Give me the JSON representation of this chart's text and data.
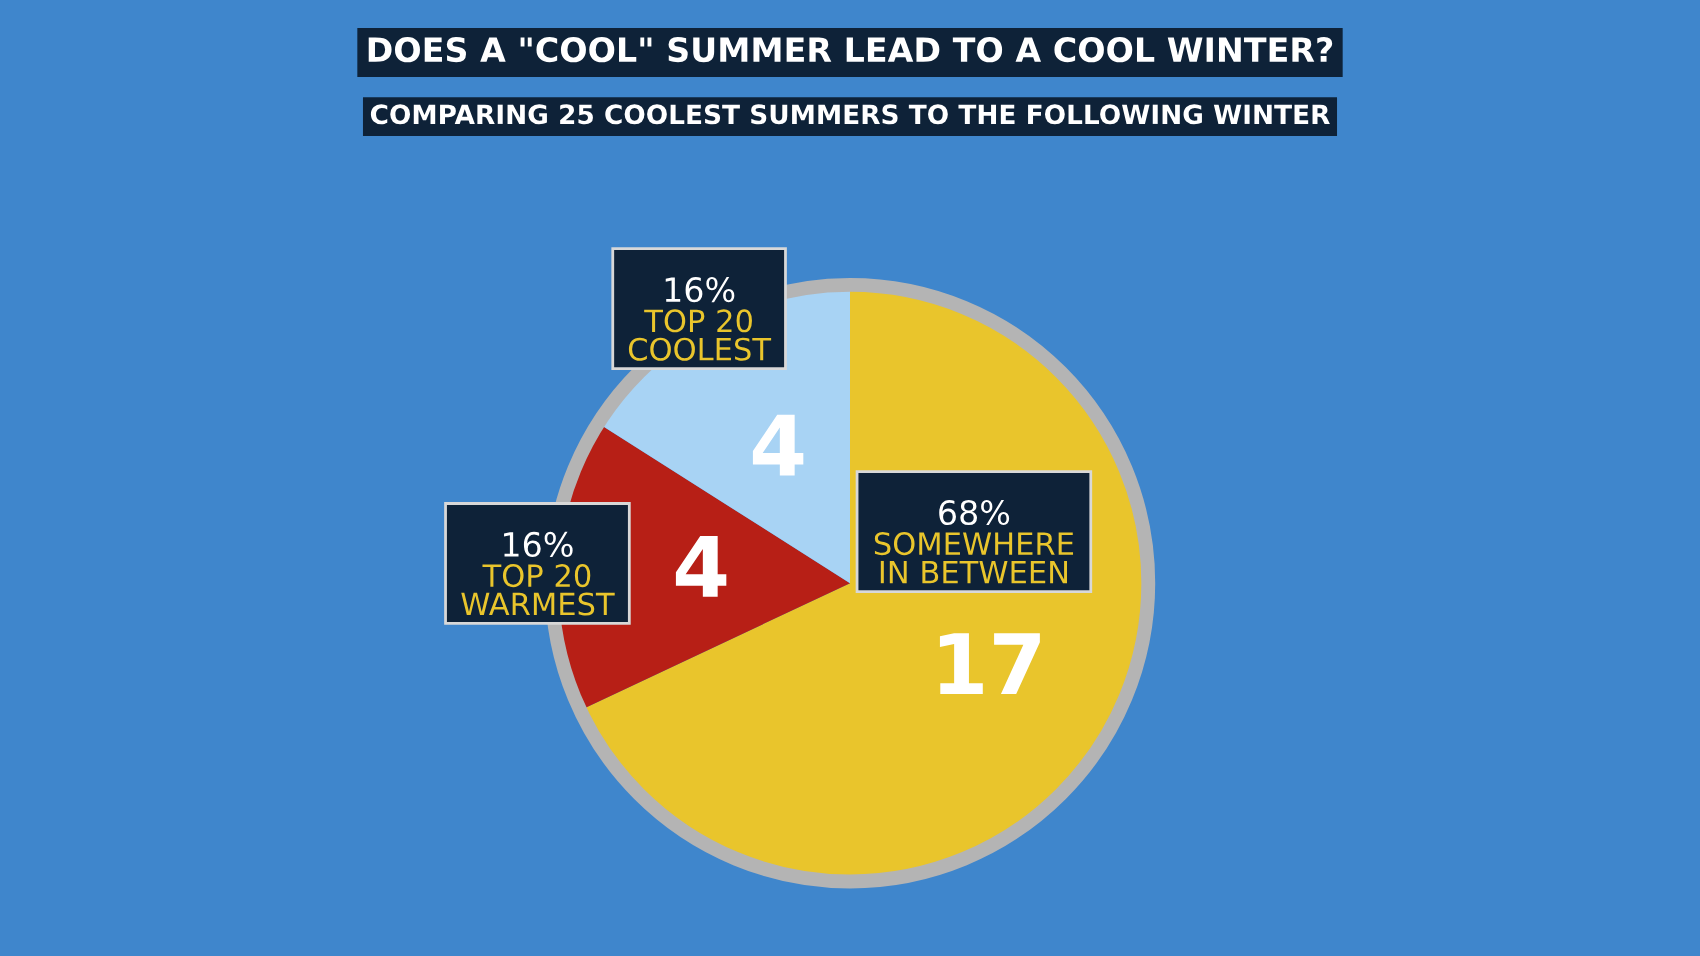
{
  "chart_data": {
    "type": "pie",
    "title": "DOES A \"COOL\" SUMMER LEAD TO A COOL WINTER?",
    "subtitle": "COMPARING 25 COOLEST SUMMERS TO THE FOLLOWING WINTER",
    "categories": [
      "SOMEWHERE IN BETWEEN",
      "TOP 20 WARMEST",
      "TOP 20 COOLEST"
    ],
    "values": [
      17,
      4,
      4
    ],
    "colors": [
      "#e9c52c",
      "#b71f16",
      "#a8d3f4"
    ],
    "data_labels": true,
    "annotations": [
      {
        "text": "68%",
        "x": "SOMEWHERE IN BETWEEN"
      },
      {
        "text": "16%",
        "x": "TOP 20 WARMEST"
      },
      {
        "text": "16%",
        "x": "TOP 20 COOLEST"
      }
    ]
  }
}
